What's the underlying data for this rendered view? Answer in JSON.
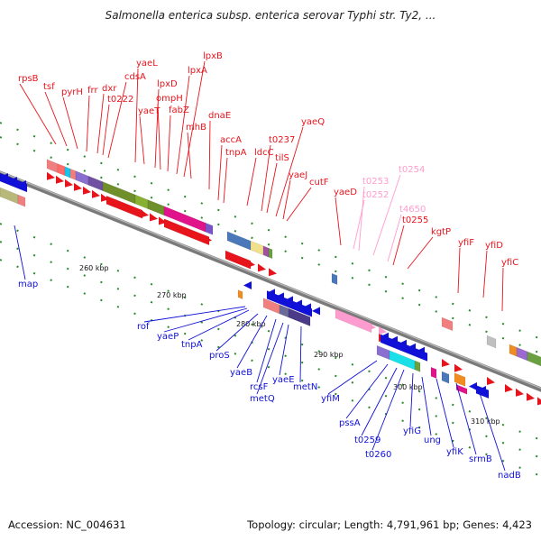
{
  "title": "Salmonella enterica subsp. enterica serovar Typhi str. Ty2, ...",
  "footer": {
    "accession": "Accession: NC_004631",
    "topology": "Topology: circular; Length: 4,791,961 bp; Genes: 4,423"
  },
  "colors": {
    "forward": "#e8141c",
    "reverse": "#1010d8",
    "rna": "#ff9ccf",
    "backbone": "#7a7a7a",
    "tick": "#2a8a2a"
  },
  "kbp_ticks": [
    "260 kbp",
    "270 kbp",
    "280 kbp",
    "290 kbp",
    "300 kbp",
    "310 kbp"
  ],
  "top_genes": [
    "rpsB",
    "tsf",
    "pyrH",
    "frr",
    "dxr",
    "t0222",
    "cdsA",
    "yaeL",
    "yaeT",
    "lpxD",
    "ompH",
    "fabZ",
    "lpxA",
    "lpxB",
    "mhB",
    "dnaE",
    "accA",
    "tnpA",
    "ldcC",
    "t0237",
    "tilS",
    "yaeQ",
    "yaeJ",
    "cutF",
    "yaeD",
    "kgtP",
    "yfiF",
    "yfiD",
    "yfiC"
  ],
  "rna_genes": [
    "t0252",
    "t0253",
    "t0254",
    "t4650"
  ],
  "rna_gene_extra": "t0255",
  "bottom_genes": [
    "map",
    "rof",
    "yaeP",
    "tnpA",
    "proS",
    "yaeB",
    "rcsF",
    "metQ",
    "yaeE",
    "metN",
    "yfiM",
    "pssA",
    "t0259",
    "t0260",
    "yfiG",
    "ung",
    "yfiK",
    "srmB",
    "nadB"
  ]
}
